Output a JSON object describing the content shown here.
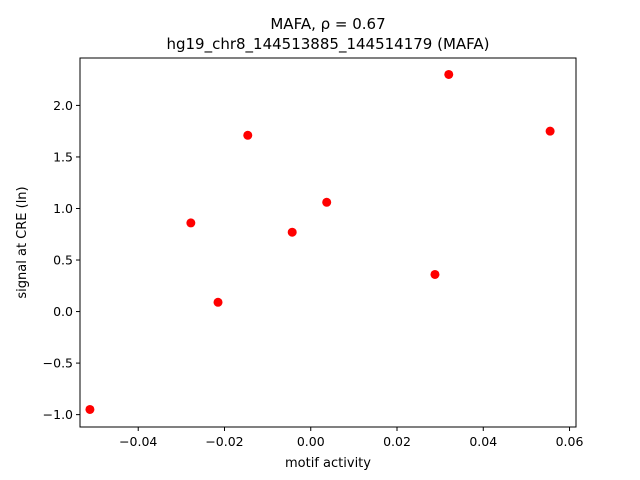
{
  "chart_data": {
    "type": "scatter",
    "title_line1": "MAFA, ρ = 0.67",
    "title_line2": "hg19_chr8_144513885_144514179 (MAFA)",
    "xlabel": "motif activity",
    "ylabel": "signal at CRE (ln)",
    "xlim": [
      -0.0535,
      0.0615
    ],
    "ylim": [
      -1.12,
      2.46
    ],
    "x_ticks": [
      -0.04,
      -0.02,
      0.0,
      0.02,
      0.04,
      0.06
    ],
    "x_tick_labels": [
      "−0.04",
      "−0.02",
      "0.00",
      "0.02",
      "0.04",
      "0.06"
    ],
    "y_ticks": [
      -1.0,
      -0.5,
      0.0,
      0.5,
      1.0,
      1.5,
      2.0
    ],
    "y_tick_labels": [
      "−1.0",
      "−0.5",
      "0.0",
      "0.5",
      "1.0",
      "1.5",
      "2.0"
    ],
    "grid": false,
    "marker_color": "#ff0000",
    "points": [
      {
        "x": -0.0512,
        "y": -0.95
      },
      {
        "x": -0.0278,
        "y": 0.86
      },
      {
        "x": -0.0215,
        "y": 0.09
      },
      {
        "x": -0.0146,
        "y": 1.71
      },
      {
        "x": -0.0043,
        "y": 0.77
      },
      {
        "x": 0.0037,
        "y": 1.06
      },
      {
        "x": 0.0288,
        "y": 0.36
      },
      {
        "x": 0.032,
        "y": 2.3
      },
      {
        "x": 0.0555,
        "y": 1.75
      }
    ]
  }
}
